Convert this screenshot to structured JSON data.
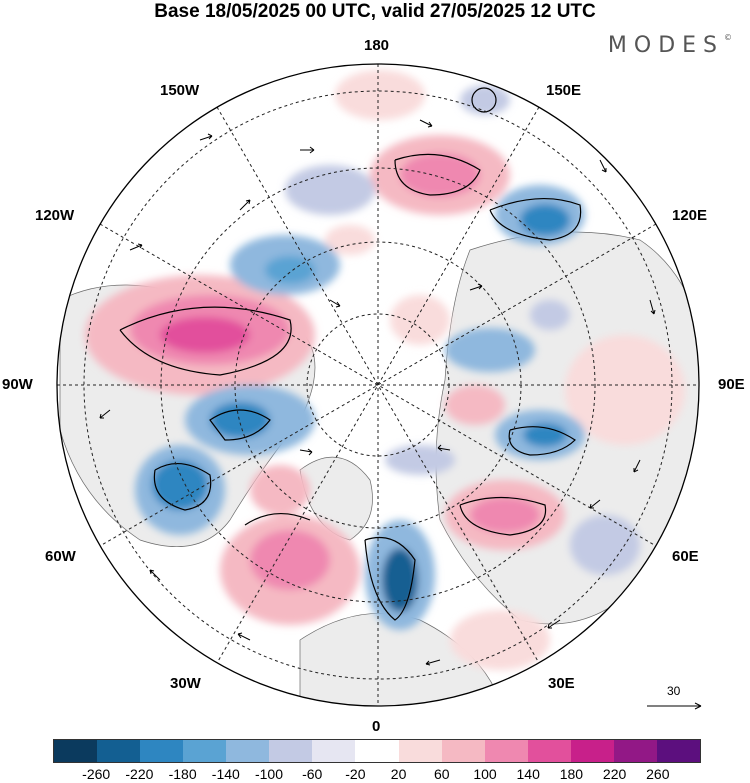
{
  "title": "Base 18/05/2025 00 UTC, valid 27/05/2025 12 UTC",
  "logo": "MODES",
  "logo_mark": "©",
  "longitude_labels": {
    "top": "180",
    "bottom": "0",
    "left": "90W",
    "right": "90E",
    "upper_left_1": "150W",
    "upper_left_2": "120W",
    "upper_right_1": "150E",
    "upper_right_2": "120E",
    "lower_left_1": "60W",
    "lower_left_2": "30W",
    "lower_right_1": "60E",
    "lower_right_2": "30E"
  },
  "reference_vector": "30",
  "colorbar": {
    "colors": [
      "#0b3a5e",
      "#135f92",
      "#2e86c1",
      "#5aa3d3",
      "#8fb8de",
      "#c3cae4",
      "#e6e6f2",
      "#ffffff",
      "#f9dcdc",
      "#f5b9c3",
      "#ef88b0",
      "#e2509c",
      "#c8208a",
      "#921886",
      "#5c0f7e"
    ],
    "ticks": [
      "-260",
      "-220",
      "-180",
      "-140",
      "-100",
      "-60",
      "-20",
      "20",
      "60",
      "100",
      "140",
      "180",
      "220",
      "260"
    ]
  }
}
